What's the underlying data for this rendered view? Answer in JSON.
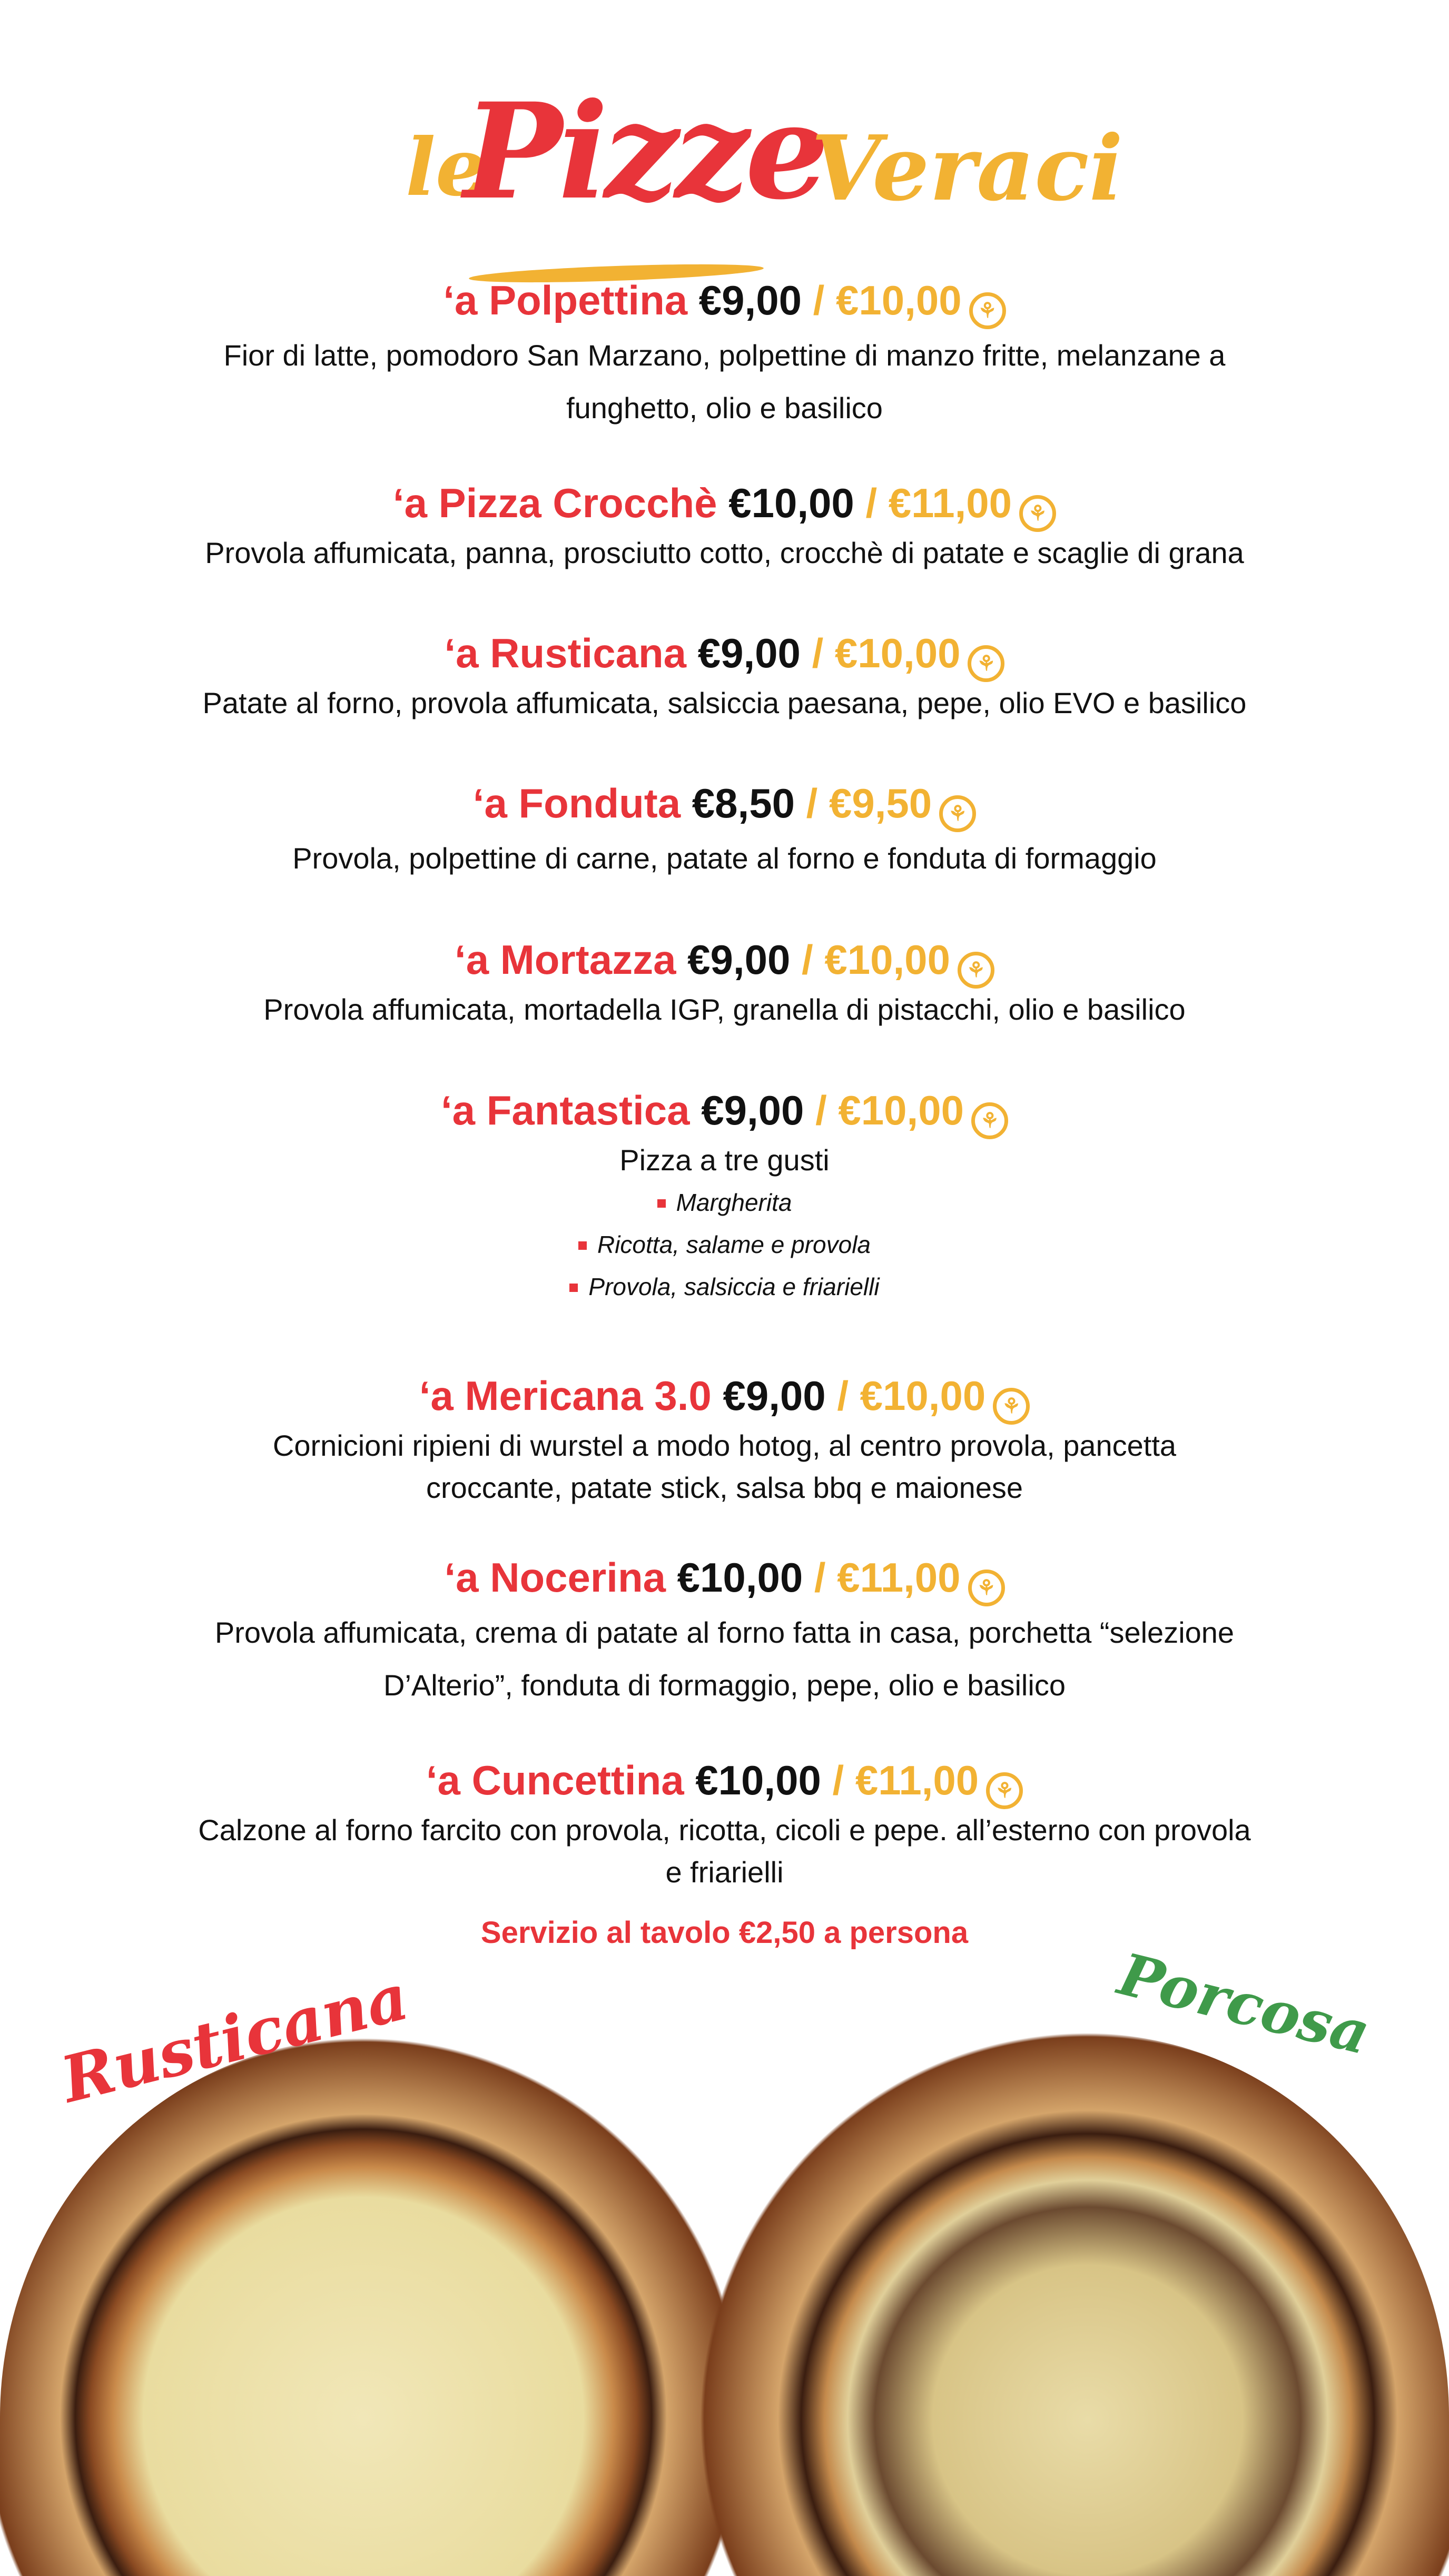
{
  "title": {
    "le": "le",
    "pizze": "Pizze",
    "veraci": "Veraci"
  },
  "colors": {
    "red": "#e8343a",
    "yellow": "#f2b233",
    "green": "#3f9a4a"
  },
  "gluten_free_icon": "wheat-crossed-icon",
  "items": [
    {
      "name": "‘a Polpettina",
      "price": "€9,00",
      "slash": "/",
      "price_gf": "€10,00",
      "desc": [
        "Fior di latte, pomodoro San Marzano, polpettine di manzo fritte, melanzane a",
        "funghetto, olio e basilico"
      ]
    },
    {
      "name": "‘a Pizza Crocchè",
      "price": "€10,00",
      "slash": "/",
      "price_gf": "€11,00",
      "desc": [
        "Provola affumicata, panna, prosciutto cotto, crocchè di patate e scaglie di grana"
      ]
    },
    {
      "name": "‘a Rusticana",
      "price": "€9,00",
      "slash": "/",
      "price_gf": "€10,00",
      "desc": [
        "Patate al forno, provola affumicata, salsiccia paesana, pepe, olio EVO e basilico"
      ]
    },
    {
      "name": "‘a Fonduta",
      "price": "€8,50",
      "slash": "/",
      "price_gf": "€9,50",
      "desc": [
        "Provola, polpettine di carne, patate al forno e fonduta di formaggio"
      ]
    },
    {
      "name": "‘a Mortazza",
      "price": "€9,00",
      "slash": "/",
      "price_gf": "€10,00",
      "desc": [
        "Provola affumicata, mortadella IGP, granella di pistacchi, olio e basilico"
      ]
    },
    {
      "name": "‘a Fantastica",
      "price": "€9,00",
      "slash": "/",
      "price_gf": "€10,00",
      "desc": [
        "Pizza a tre gusti"
      ],
      "sub": [
        "Margherita",
        "Ricotta, salame e provola",
        "Provola, salsiccia e friarielli"
      ]
    },
    {
      "name": "‘a Mericana 3.0",
      "price": "€9,00",
      "slash": "/",
      "price_gf": "€10,00",
      "desc": [
        "Cornicioni ripieni di wurstel a modo hotog, al centro provola, pancetta",
        "croccante, patate stick, salsa bbq e maionese"
      ]
    },
    {
      "name": "‘a Nocerina",
      "price": "€10,00",
      "slash": "/",
      "price_gf": "€11,00",
      "desc": [
        "Provola affumicata, crema di patate al forno fatta in casa, porchetta “selezione",
        "D’Alterio”, fonduta di formaggio, pepe, olio e basilico"
      ]
    },
    {
      "name": "‘a Cuncettina",
      "price": "€10,00",
      "slash": "/",
      "price_gf": "€11,00",
      "desc": [
        "Calzone al forno farcito con provola, ricotta, cicoli e pepe. all’esterno con provola",
        "e friarielli"
      ]
    }
  ],
  "service": "Servizio al tavolo €2,50 a persona",
  "photos": {
    "left_label": "Rusticana",
    "right_label": "Porcosa"
  }
}
